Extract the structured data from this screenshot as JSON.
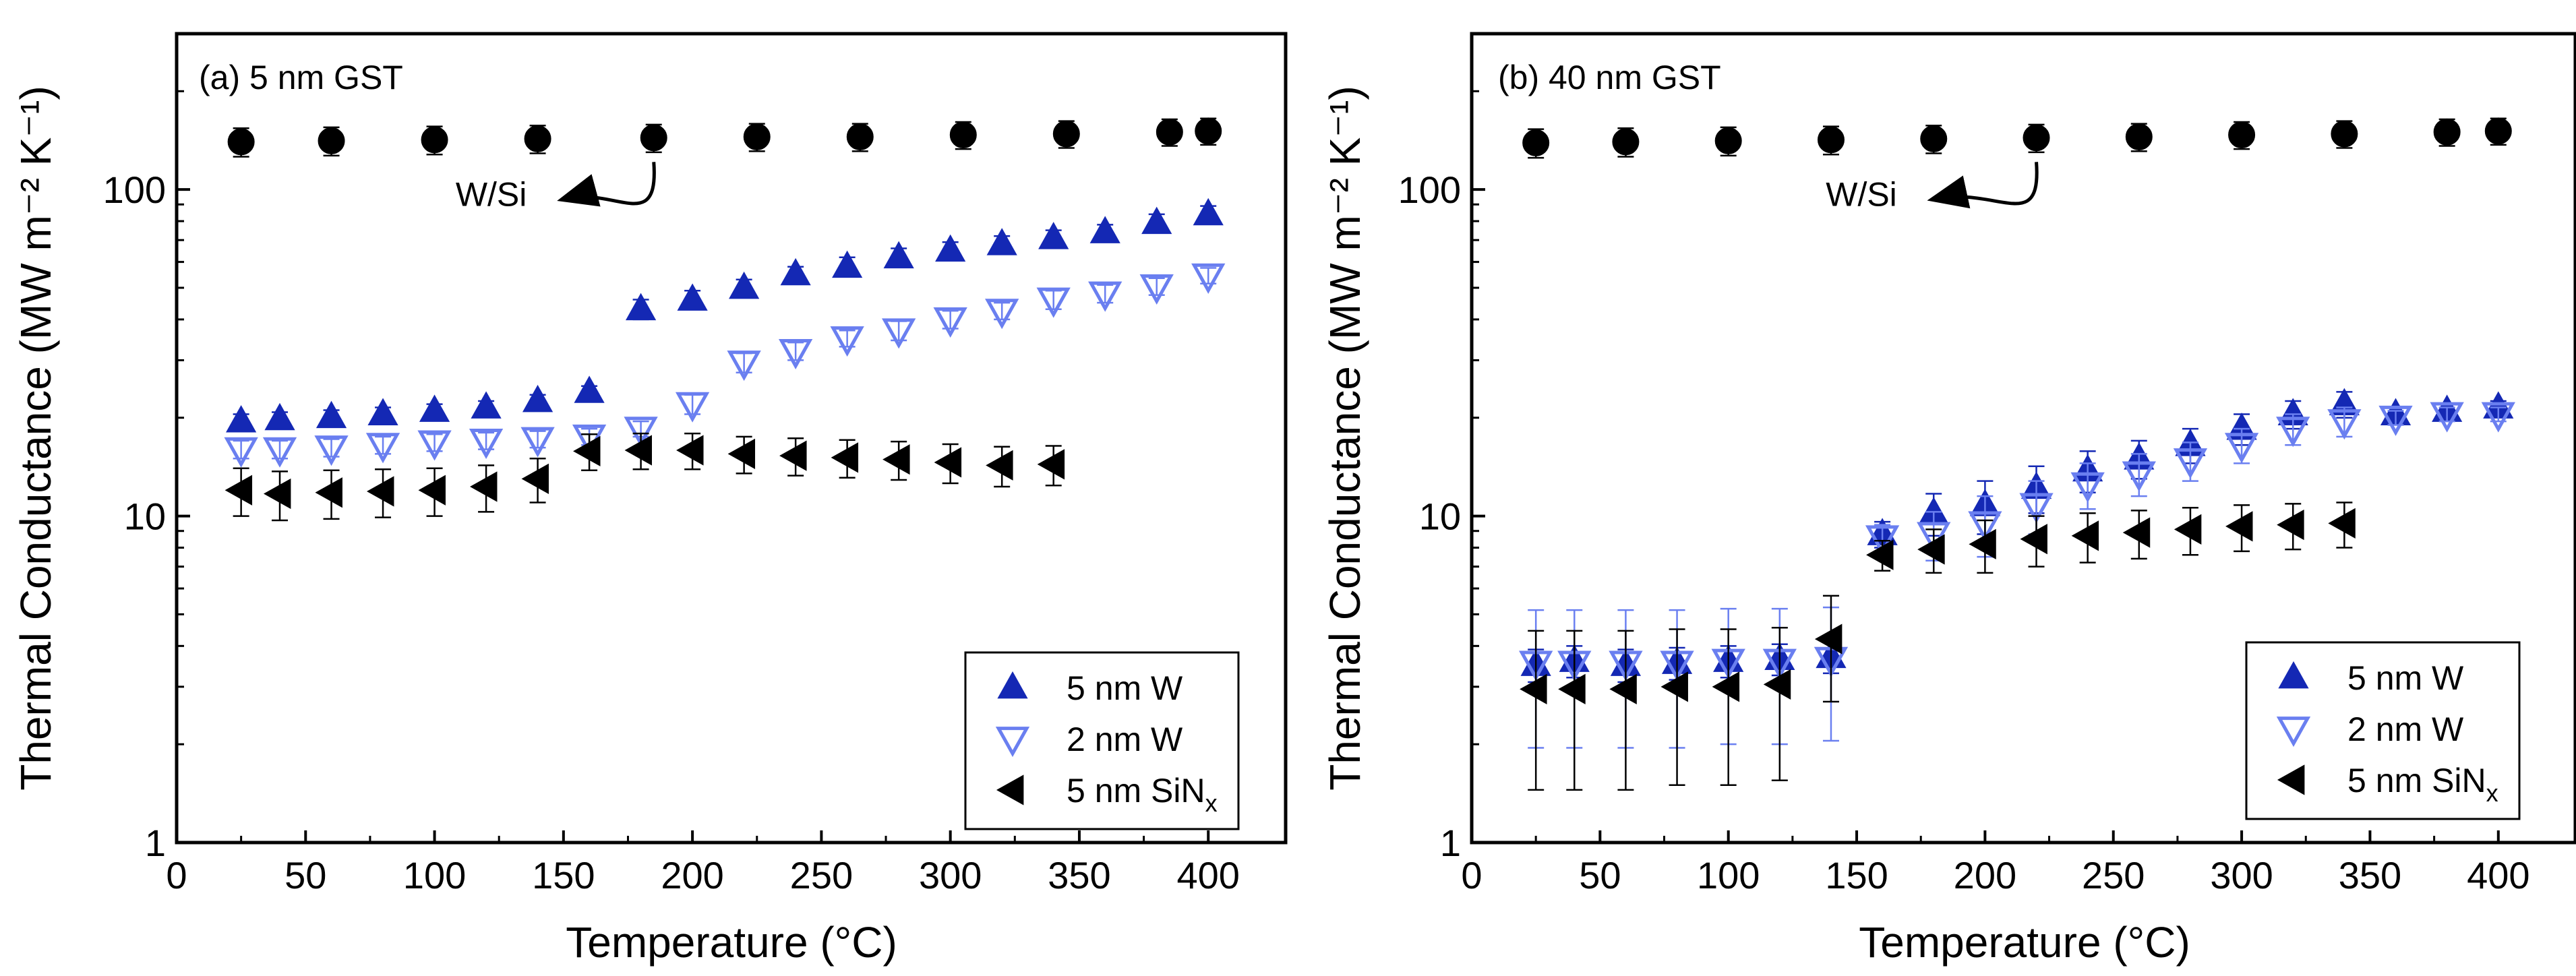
{
  "colors": {
    "w5": "#1428b4",
    "w2": "#6a7ff0",
    "sin": "#000000",
    "wsi": "#000000"
  },
  "chart_data": [
    {
      "type": "scatter",
      "panel_label": "(a)  5 nm GST",
      "xlabel": "Temperature (°C)",
      "ylabel": "Thermal Conductance (MW m⁻² K⁻¹)",
      "xscale": "linear",
      "yscale": "log",
      "xlim": [
        0,
        430
      ],
      "ylim": [
        1,
        300
      ],
      "xticks": [
        0,
        50,
        100,
        150,
        200,
        250,
        300,
        350,
        400
      ],
      "xtick_labels": [
        "0",
        "50",
        "100",
        "150",
        "200",
        "250",
        "300",
        "350",
        "400"
      ],
      "yticks": [
        1,
        10,
        100
      ],
      "ytick_labels": [
        "1",
        "10",
        "100"
      ],
      "annotation": {
        "text": "W/Si",
        "from": [
          185,
          140
        ],
        "to": [
          150,
          113
        ]
      },
      "legend_position": "bottom-right",
      "series": [
        {
          "name": "W/Si",
          "legend": false,
          "marker": "circle",
          "filled": true,
          "color_key": "wsi",
          "x": [
            25,
            60,
            100,
            140,
            185,
            225,
            265,
            305,
            345,
            385,
            400
          ],
          "y": [
            140,
            141,
            142,
            143,
            144,
            145,
            145,
            147,
            148,
            150,
            151
          ],
          "err_lo": [
            14,
            14,
            14,
            14,
            14,
            14,
            14,
            14,
            14,
            14,
            14
          ],
          "err_hi": [
            14,
            14,
            14,
            14,
            14,
            14,
            14,
            14,
            14,
            14,
            14
          ]
        },
        {
          "name": "5 nm W",
          "legend": true,
          "marker": "triangle-up",
          "filled": true,
          "color_key": "w5",
          "x": [
            25,
            40,
            60,
            80,
            100,
            120,
            140,
            160,
            180,
            200,
            220,
            240,
            260,
            280,
            300,
            320,
            340,
            360,
            380,
            400
          ],
          "y": [
            19.5,
            19.8,
            20.1,
            20.5,
            21,
            21.5,
            22.5,
            24,
            43,
            46,
            50,
            55,
            58,
            62,
            65,
            68,
            71,
            74,
            79,
            84
          ],
          "err_lo": [
            1,
            1,
            1,
            1,
            1,
            1,
            1,
            1,
            3,
            3,
            3,
            3,
            4,
            4,
            4,
            4,
            4,
            4,
            5,
            5
          ],
          "err_hi": [
            1,
            1,
            1,
            1,
            1,
            1,
            1,
            1,
            3,
            3,
            3,
            3,
            4,
            4,
            4,
            4,
            4,
            4,
            5,
            5
          ]
        },
        {
          "name": "2 nm W",
          "legend": true,
          "marker": "triangle-down",
          "filled": false,
          "color_key": "w2",
          "x": [
            25,
            40,
            60,
            80,
            100,
            120,
            140,
            160,
            180,
            200,
            220,
            240,
            260,
            280,
            300,
            320,
            340,
            360,
            380,
            400
          ],
          "y": [
            16,
            16,
            16.2,
            16.5,
            16.8,
            17,
            17.2,
            17.5,
            18.5,
            22,
            29.5,
            32,
            35,
            37,
            40,
            42.5,
            46,
            48,
            50.5,
            54.5
          ],
          "err_lo": [
            1,
            1,
            1,
            1,
            1,
            1,
            1,
            1,
            1,
            1.5,
            2,
            2,
            2,
            2.5,
            2.5,
            2.5,
            3,
            3,
            3,
            3
          ],
          "err_hi": [
            1,
            1,
            1,
            1,
            1,
            1,
            1,
            1,
            1,
            1.5,
            2,
            2,
            2,
            2.5,
            2.5,
            2.5,
            3,
            3,
            3,
            3
          ]
        },
        {
          "name": "5 nm SiNx",
          "legend": true,
          "marker": "triangle-left",
          "filled": true,
          "color_key": "sin",
          "x": [
            25,
            40,
            60,
            80,
            100,
            120,
            140,
            160,
            180,
            200,
            220,
            240,
            260,
            280,
            300,
            320,
            340
          ],
          "y": [
            12,
            11.7,
            11.8,
            11.9,
            12,
            12.3,
            13,
            15.8,
            15.9,
            15.9,
            15.5,
            15.3,
            15.1,
            14.9,
            14.6,
            14.3,
            14.4
          ],
          "err_lo": [
            2,
            2,
            2,
            2,
            2,
            2,
            2,
            2,
            2,
            2,
            2,
            2,
            2,
            2,
            2,
            2,
            2
          ],
          "err_hi": [
            2,
            2,
            2,
            2,
            2,
            2,
            2,
            2,
            2,
            2,
            2,
            2,
            2,
            2,
            2,
            2,
            2
          ]
        }
      ]
    },
    {
      "type": "scatter",
      "panel_label": "(b) 40 nm GST",
      "xlabel": "Temperature (°C)",
      "ylabel": "Thermal Conductance (MW m⁻² K⁻¹)",
      "xscale": "linear",
      "yscale": "log",
      "xlim": [
        0,
        430
      ],
      "ylim": [
        1,
        300
      ],
      "xticks": [
        0,
        50,
        100,
        150,
        200,
        250,
        300,
        350,
        400
      ],
      "xtick_labels": [
        "0",
        "50",
        "100",
        "150",
        "200",
        "250",
        "300",
        "350",
        "400"
      ],
      "yticks": [
        1,
        10,
        100
      ],
      "ytick_labels": [
        "1",
        "10",
        "100"
      ],
      "annotation": {
        "text": "W/Si",
        "from": [
          220,
          140
        ],
        "to": [
          180,
          113
        ]
      },
      "legend_position": "bottom-right",
      "series": [
        {
          "name": "W/Si",
          "legend": false,
          "marker": "circle",
          "filled": true,
          "color_key": "wsi",
          "x": [
            25,
            60,
            100,
            140,
            180,
            220,
            260,
            300,
            340,
            380,
            400
          ],
          "y": [
            139,
            140,
            141,
            142,
            143,
            144,
            145,
            147,
            148,
            150,
            151
          ],
          "err_lo": [
            14,
            14,
            14,
            14,
            14,
            14,
            14,
            14,
            14,
            14,
            14
          ],
          "err_hi": [
            14,
            14,
            14,
            14,
            14,
            14,
            14,
            14,
            14,
            14,
            14
          ]
        },
        {
          "name": "5 nm W",
          "legend": true,
          "marker": "triangle-up",
          "filled": true,
          "color_key": "w5",
          "x": [
            25,
            40,
            60,
            80,
            100,
            120,
            140,
            160,
            180,
            200,
            220,
            240,
            260,
            280,
            300,
            320,
            340,
            360,
            380,
            400
          ],
          "y": [
            3.5,
            3.6,
            3.5,
            3.55,
            3.6,
            3.65,
            3.7,
            8.8,
            10.2,
            10.8,
            12.2,
            13.8,
            15,
            16.5,
            18.5,
            20.5,
            22,
            20.5,
            21,
            21.5
          ],
          "err_lo": [
            0.4,
            0.4,
            0.4,
            0.4,
            0.4,
            0.4,
            0.4,
            0.8,
            1.5,
            2,
            2,
            2,
            2,
            2,
            2,
            2,
            2,
            1,
            1,
            1
          ],
          "err_hi": [
            0.4,
            0.4,
            0.4,
            0.4,
            0.4,
            0.4,
            0.4,
            0.8,
            1.5,
            2,
            2,
            2,
            2,
            2,
            2,
            2,
            2,
            1,
            1,
            1
          ]
        },
        {
          "name": "2 nm W",
          "legend": true,
          "marker": "triangle-down",
          "filled": false,
          "color_key": "w2",
          "x": [
            25,
            40,
            60,
            80,
            100,
            120,
            140,
            160,
            180,
            200,
            220,
            240,
            260,
            280,
            300,
            320,
            340,
            360,
            380,
            400
          ],
          "y": [
            3.55,
            3.55,
            3.55,
            3.55,
            3.6,
            3.6,
            3.65,
            8.6,
            8.8,
            9.5,
            10.8,
            12.5,
            13.5,
            14.8,
            16.5,
            18.5,
            19.5,
            20,
            20.5,
            20.5
          ],
          "err_lo": [
            1.6,
            1.6,
            1.6,
            1.6,
            1.6,
            1.6,
            1.6,
            0.8,
            1.5,
            2,
            2,
            2,
            2,
            2,
            2,
            2,
            2,
            1,
            1,
            1
          ],
          "err_hi": [
            1.6,
            1.6,
            1.6,
            1.6,
            1.6,
            1.6,
            1.6,
            0.8,
            1.5,
            2,
            2,
            2,
            2,
            2,
            2,
            2,
            2,
            1,
            1,
            1
          ]
        },
        {
          "name": "5 nm SiNx",
          "legend": true,
          "marker": "triangle-left",
          "filled": true,
          "color_key": "sin",
          "x": [
            25,
            40,
            60,
            80,
            100,
            120,
            140,
            160,
            180,
            200,
            220,
            240,
            260,
            280,
            300,
            320,
            340
          ],
          "y": [
            2.95,
            2.95,
            2.95,
            3,
            3,
            3.05,
            4.2,
            7.6,
            7.9,
            8.2,
            8.5,
            8.7,
            8.9,
            9.1,
            9.3,
            9.4,
            9.5
          ],
          "err_lo": [
            1.5,
            1.5,
            1.5,
            1.5,
            1.5,
            1.5,
            1.5,
            0.8,
            1.2,
            1.5,
            1.5,
            1.5,
            1.5,
            1.5,
            1.5,
            1.5,
            1.5
          ],
          "err_hi": [
            1.5,
            1.5,
            1.5,
            1.5,
            1.5,
            1.5,
            1.5,
            0.8,
            1.2,
            1.5,
            1.5,
            1.5,
            1.5,
            1.5,
            1.5,
            1.5,
            1.5
          ]
        }
      ]
    }
  ]
}
